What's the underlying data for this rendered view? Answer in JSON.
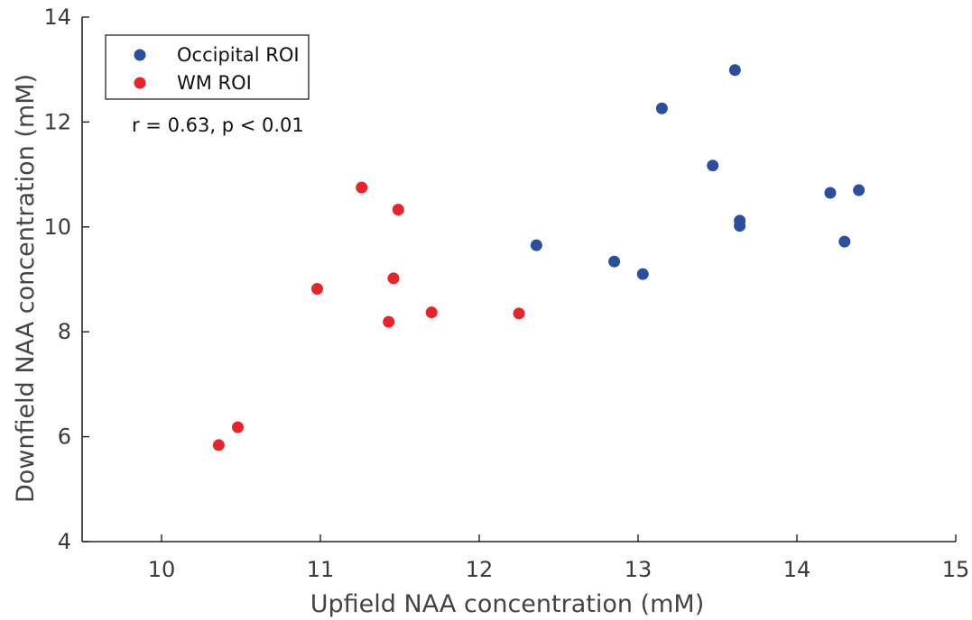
{
  "chart_data": {
    "type": "scatter",
    "title": "",
    "xlabel": "Upfield NAA concentration (mM)",
    "ylabel": "Downfield NAA concentration (mM)",
    "xlim": [
      9.5,
      15
    ],
    "ylim": [
      4,
      14
    ],
    "xticks": [
      10,
      11,
      12,
      13,
      14,
      15
    ],
    "yticks": [
      4,
      6,
      8,
      10,
      12,
      14
    ],
    "grid": false,
    "legend_position": "top-left",
    "annotation": "r = 0.63, p < 0.01",
    "series": [
      {
        "name": "Occipital ROI",
        "color": "#2a4f9e",
        "points": [
          {
            "x": 12.36,
            "y": 9.65
          },
          {
            "x": 12.85,
            "y": 9.34
          },
          {
            "x": 13.03,
            "y": 9.1
          },
          {
            "x": 13.15,
            "y": 12.26
          },
          {
            "x": 13.47,
            "y": 11.17
          },
          {
            "x": 13.61,
            "y": 12.99
          },
          {
            "x": 13.64,
            "y": 10.12
          },
          {
            "x": 13.64,
            "y": 10.02
          },
          {
            "x": 14.21,
            "y": 10.65
          },
          {
            "x": 14.3,
            "y": 9.72
          },
          {
            "x": 14.39,
            "y": 10.7
          }
        ]
      },
      {
        "name": "WM ROI",
        "color": "#e8242b",
        "points": [
          {
            "x": 10.36,
            "y": 5.84
          },
          {
            "x": 10.48,
            "y": 6.18
          },
          {
            "x": 10.98,
            "y": 8.82
          },
          {
            "x": 11.26,
            "y": 10.75
          },
          {
            "x": 11.43,
            "y": 8.19
          },
          {
            "x": 11.46,
            "y": 9.02
          },
          {
            "x": 11.49,
            "y": 10.33
          },
          {
            "x": 11.7,
            "y": 8.37
          },
          {
            "x": 12.25,
            "y": 8.35
          }
        ]
      }
    ]
  }
}
